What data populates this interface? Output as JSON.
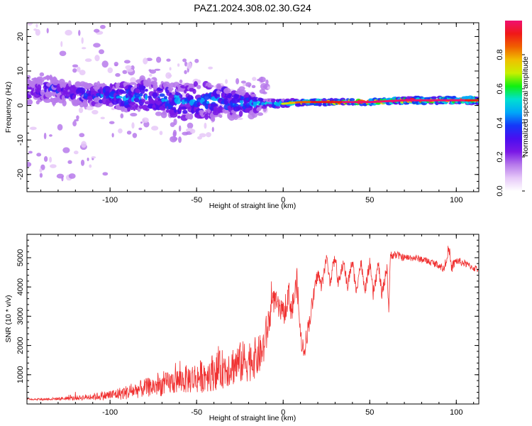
{
  "figure_title": "PAZ1.2024.308.02.30.G24",
  "chart_data": [
    {
      "type": "heatmap",
      "title": "PAZ1.2024.308.02.30.G24",
      "xlabel": "Height of straight line (km)",
      "ylabel": "Frequency (Hz)",
      "xlim": [
        -148,
        113
      ],
      "ylim": [
        -25,
        24
      ],
      "xticks": [
        -100,
        -50,
        0,
        50,
        100
      ],
      "yticks": [
        -20,
        -10,
        0,
        10,
        20
      ],
      "grid": false,
      "colorbar": {
        "label": "Normalized spectral amplitude",
        "range": [
          0,
          1
        ],
        "ticks": [
          "0.0",
          "0.2",
          "0.4",
          "0.6",
          "0.8"
        ],
        "colors": [
          "#ffffff",
          "#e6c8f8",
          "#b77aeb",
          "#7a18e6",
          "#4a0ef0",
          "#1438f8",
          "#00a8f8",
          "#00e0d0",
          "#10f010",
          "#c8f000",
          "#f0c000",
          "#f06000",
          "#f01818",
          "#f01070"
        ]
      },
      "feature_track": [
        {
          "x": -145,
          "freq": 4,
          "amp": 0.3,
          "spread": 3.5
        },
        {
          "x": -135,
          "freq": 5,
          "amp": 0.35,
          "spread": 3.5
        },
        {
          "x": -125,
          "freq": 3.5,
          "amp": 0.35,
          "spread": 3
        },
        {
          "x": -110,
          "freq": 3,
          "amp": 0.4,
          "spread": 3
        },
        {
          "x": -100,
          "freq": 3,
          "amp": 0.45,
          "spread": 3
        },
        {
          "x": -90,
          "freq": 2.5,
          "amp": 0.45,
          "spread": 4
        },
        {
          "x": -80,
          "freq": 3,
          "amp": 0.45,
          "spread": 4.5
        },
        {
          "x": -70,
          "freq": 2,
          "amp": 0.45,
          "spread": 4.5
        },
        {
          "x": -60,
          "freq": 1,
          "amp": 0.45,
          "spread": 5
        },
        {
          "x": -50,
          "freq": 1.5,
          "amp": 0.45,
          "spread": 5
        },
        {
          "x": -40,
          "freq": 1,
          "amp": 0.45,
          "spread": 5
        },
        {
          "x": -30,
          "freq": 1,
          "amp": 0.45,
          "spread": 4.5
        },
        {
          "x": -20,
          "freq": 0.5,
          "amp": 0.45,
          "spread": 3
        },
        {
          "x": -10,
          "freq": 0.5,
          "amp": 0.5,
          "spread": 1.2
        },
        {
          "x": 0,
          "freq": 0.5,
          "amp": 0.65,
          "spread": 1
        },
        {
          "x": 10,
          "freq": 1,
          "amp": 0.8,
          "spread": 0.8
        },
        {
          "x": 30,
          "freq": 1,
          "amp": 0.9,
          "spread": 0.7
        },
        {
          "x": 50,
          "freq": 1,
          "amp": 0.95,
          "spread": 0.7
        },
        {
          "x": 70,
          "freq": 1.5,
          "amp": 0.95,
          "spread": 0.8
        },
        {
          "x": 90,
          "freq": 1.5,
          "amp": 0.95,
          "spread": 0.9
        },
        {
          "x": 110,
          "freq": 1.5,
          "amp": 0.9,
          "spread": 1
        }
      ]
    },
    {
      "type": "line",
      "xlabel": "Height of straight line (km)",
      "ylabel": "SNR (10 * v/v)",
      "xlim": [
        -148,
        113
      ],
      "ylim": [
        0,
        5800
      ],
      "xticks": [
        -100,
        -50,
        0,
        50,
        100
      ],
      "yticks": [
        1000,
        2000,
        3000,
        4000,
        5000
      ],
      "grid": false,
      "series": [
        {
          "color": "#f03030",
          "x": [
            -148,
            -140,
            -130,
            -120,
            -110,
            -100,
            -90,
            -80,
            -70,
            -60,
            -50,
            -40,
            -30,
            -20,
            -15,
            -12,
            -10,
            -7,
            -5,
            -3,
            0,
            3,
            5,
            8,
            10,
            12,
            15,
            18,
            20,
            22,
            25,
            27,
            30,
            32,
            35,
            37,
            40,
            42,
            45,
            47,
            50,
            52,
            55,
            57,
            60,
            61,
            62,
            65,
            70,
            75,
            80,
            85,
            90,
            93,
            95,
            96,
            97,
            100,
            105,
            110,
            113
          ],
          "y": [
            170,
            160,
            180,
            200,
            250,
            300,
            400,
            550,
            650,
            800,
            900,
            1100,
            1300,
            1500,
            1600,
            1800,
            2300,
            3200,
            3600,
            3300,
            3000,
            3800,
            3200,
            4200,
            2300,
            1800,
            2800,
            3800,
            4500,
            4000,
            5000,
            4200,
            5000,
            4100,
            4900,
            4000,
            4900,
            3900,
            4850,
            3800,
            4800,
            3750,
            4800,
            3700,
            4700,
            3200,
            5100,
            5100,
            5000,
            5000,
            4950,
            4850,
            4750,
            4600,
            5200,
            5200,
            4650,
            4900,
            4800,
            4650,
            4600
          ],
          "noise": [
            30,
            40,
            50,
            80,
            120,
            180,
            250,
            320,
            380,
            450,
            550,
            650,
            700,
            750,
            700,
            650,
            700,
            500,
            400,
            400,
            450,
            500,
            500,
            450,
            400,
            350,
            350,
            300,
            250,
            250,
            200,
            250,
            200,
            250,
            200,
            250,
            200,
            250,
            200,
            250,
            200,
            250,
            200,
            250,
            200,
            250,
            150,
            150,
            120,
            120,
            120,
            120,
            130,
            150,
            200,
            250,
            200,
            150,
            120,
            120,
            120
          ]
        }
      ]
    }
  ]
}
